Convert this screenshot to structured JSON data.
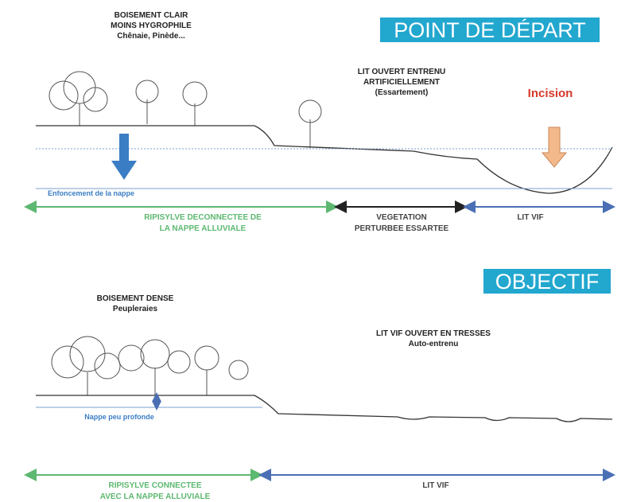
{
  "top": {
    "tag": "POINT DE DÉPART",
    "forest_label": [
      "BOISEMENT CLAIR",
      "MOINS HYGROPHILE",
      "Chênaie, Pinède..."
    ],
    "open_bed_label": [
      "LIT OUVERT ENTRENU",
      "ARTIFICIELLEMENT",
      "(Essartement)"
    ],
    "incision": "Incision",
    "water_note": "Enfoncement de la nappe",
    "zones": [
      {
        "label": [
          "RIPISYLVE DECONNECTEE DE",
          "LA NAPPE ALLUVIALE"
        ]
      },
      {
        "label": [
          "VEGETATION",
          "PERTURBEE ESSARTEE"
        ]
      },
      {
        "label": [
          "LIT VIF"
        ]
      }
    ]
  },
  "bottom": {
    "tag": "OBJECTIF",
    "forest_label": [
      "BOISEMENT DENSE",
      "Peupleraies"
    ],
    "open_bed_label": [
      "LIT VIF OUVERT EN TRESSES",
      "Auto-entrenu"
    ],
    "water_note": "Nappe peu profonde",
    "zones": [
      {
        "label": [
          "RIPISYLVE CONNECTEE",
          "AVEC LA NAPPE ALLUVIALE"
        ]
      },
      {
        "label": [
          "LIT VIF"
        ]
      }
    ]
  }
}
